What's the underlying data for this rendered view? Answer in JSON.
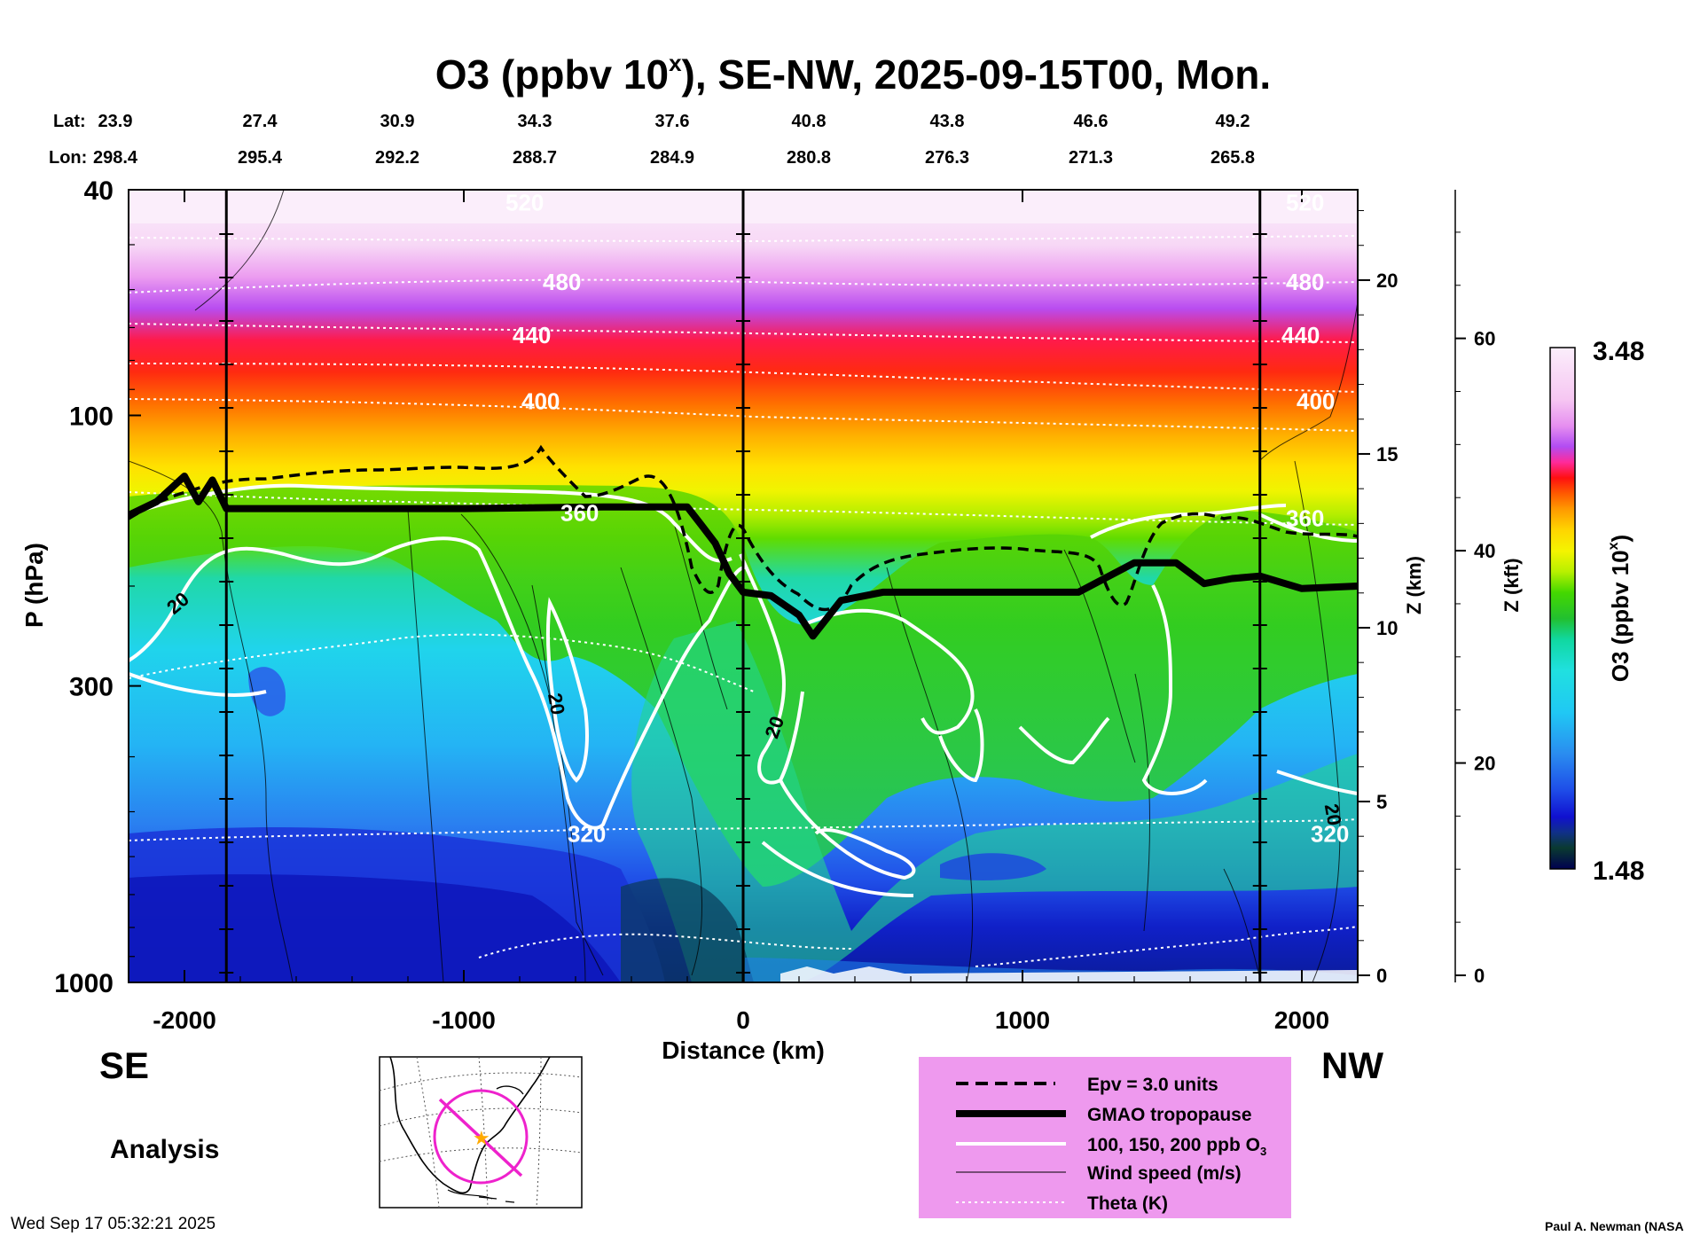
{
  "chart_data": {
    "type": "heatmap",
    "title": "O3 (ppbv 10",
    "title_sup": "x",
    "title_rest": "), SE-NW, 2025-09-15T00, Mon.",
    "lat_label": "Lat:",
    "lon_label": "Lon:",
    "lats": [
      "23.9",
      "27.4",
      "30.9",
      "34.3",
      "37.6",
      "40.8",
      "43.8",
      "46.6",
      "49.2"
    ],
    "lons": [
      "298.4",
      "295.4",
      "292.2",
      "288.7",
      "284.9",
      "280.8",
      "276.3",
      "271.3",
      "265.8"
    ],
    "xlabel": "Distance (km)",
    "xlim": [
      -2200,
      2200
    ],
    "xticks": [
      -2000,
      -1000,
      0,
      1000,
      2000
    ],
    "xtick_labels": [
      "-2000",
      "-1000",
      "0",
      "1000",
      "2000"
    ],
    "ylabel": "P (hPa)",
    "ylim": [
      1000,
      40
    ],
    "yticks": [
      40,
      100,
      300,
      1000
    ],
    "ytick_labels": [
      "40",
      "100",
      "300",
      "1000"
    ],
    "z_km_label": "Z (km)",
    "z_km_ticks": [
      0,
      5,
      10,
      15,
      20
    ],
    "z_km_tick_labels": [
      "0",
      "5",
      "10",
      "15",
      "20"
    ],
    "z_kft_label": "Z (kft)",
    "z_kft_ticks": [
      0,
      20,
      40,
      60
    ],
    "z_kft_tick_labels": [
      "0",
      "20",
      "40",
      "60"
    ],
    "colorbar_label": "O3 (ppbv 10",
    "colorbar_label_sup": "x",
    "colorbar_label_end": ")",
    "colorbar_max": "3.48",
    "colorbar_min": "1.48",
    "theta_levels": [
      {
        "label": "520",
        "p": 42
      },
      {
        "label": "480",
        "p": 58
      },
      {
        "label": "440",
        "p": 72
      },
      {
        "label": "400",
        "p": 94
      },
      {
        "label": "360",
        "p": 148
      },
      {
        "label": "320",
        "p": 545
      }
    ],
    "wind_labels": [
      "20",
      "20",
      "20",
      "20"
    ],
    "tropopause_hpa": [
      [
        -2200,
        150
      ],
      [
        -2100,
        142
      ],
      [
        -2000,
        128
      ],
      [
        -1950,
        142
      ],
      [
        -1900,
        130
      ],
      [
        -1850,
        146
      ],
      [
        -1500,
        146
      ],
      [
        -1000,
        146
      ],
      [
        -500,
        145
      ],
      [
        -200,
        145
      ],
      [
        -150,
        156
      ],
      [
        -100,
        168
      ],
      [
        -50,
        190
      ],
      [
        0,
        205
      ],
      [
        100,
        208
      ],
      [
        200,
        225
      ],
      [
        250,
        245
      ],
      [
        350,
        212
      ],
      [
        500,
        205
      ],
      [
        1000,
        205
      ],
      [
        1200,
        205
      ],
      [
        1400,
        182
      ],
      [
        1550,
        182
      ],
      [
        1650,
        198
      ],
      [
        1750,
        194
      ],
      [
        1850,
        192
      ],
      [
        2000,
        202
      ],
      [
        2200,
        200
      ]
    ],
    "legend": [
      {
        "style": "dashed",
        "label": "Epv = 3.0 units"
      },
      {
        "style": "thick",
        "label": "GMAO tropopause"
      },
      {
        "style": "white",
        "label": "100, 150, 200 ppb O"
      },
      {
        "style": "thin",
        "label": "Wind speed (m/s)"
      },
      {
        "style": "dotted",
        "label": "Theta (K)"
      }
    ],
    "legend_o3_sub": "3",
    "left_direction": "SE",
    "right_direction": "NW",
    "panel_label": "Analysis"
  },
  "footer": {
    "timestamp": "Wed Sep 17 05:32:21 2025",
    "credit": "Paul A. Newman (NASA"
  },
  "colors": {
    "tropopause": "#000000",
    "legend_bg": "#ee99ee",
    "map_track": "#ee22cc",
    "map_star": "#ffaa00"
  }
}
